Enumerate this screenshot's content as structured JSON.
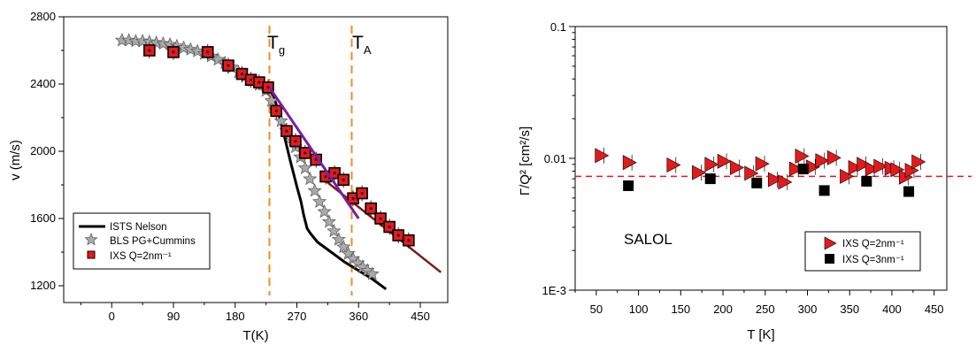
{
  "chart_data": [
    {
      "type": "scatter",
      "title": "",
      "xlabel": "T(K)",
      "ylabel": "v (m/s)",
      "xlim": [
        -70,
        490
      ],
      "ylim": [
        1100,
        2800
      ],
      "x_ticks": [
        "0",
        "90",
        "180",
        "270",
        "360",
        "450"
      ],
      "y_ticks": [
        "1200",
        "1600",
        "2000",
        "2400",
        "2800"
      ],
      "annotations": [
        {
          "text": "T",
          "sub": "g",
          "x": 230
        },
        {
          "text": "T",
          "sub": "A",
          "x": 350
        }
      ],
      "colors": {
        "nelson": "#000000",
        "bls": "#aaaaaa",
        "ixs": "#e31a1c",
        "fit_glass": "#7a1fa2",
        "fit_liquid": "#7a1a12",
        "tg_line": "#f08c1e"
      },
      "series": [
        {
          "name": "ISTS Nelson",
          "marker": "line",
          "x": [
            230,
            240,
            250,
            260,
            270,
            276,
            280,
            285,
            290,
            300,
            320,
            340,
            360,
            380,
            400
          ],
          "y": [
            2380,
            2280,
            2120,
            1950,
            1790,
            1700,
            1620,
            1540,
            1510,
            1460,
            1400,
            1340,
            1290,
            1240,
            1180
          ]
        },
        {
          "name": "BLS PG+Cummins",
          "marker": "star",
          "x": [
            15,
            25,
            35,
            45,
            55,
            65,
            75,
            85,
            95,
            105,
            115,
            125,
            135,
            145,
            155,
            165,
            175,
            185,
            195,
            205,
            215,
            225,
            233,
            240,
            247,
            254,
            261,
            268,
            275,
            282,
            289,
            296,
            303,
            310,
            317,
            324,
            331,
            338,
            345,
            352,
            359,
            366,
            373,
            380
          ],
          "y": [
            2660,
            2660,
            2655,
            2655,
            2650,
            2645,
            2640,
            2635,
            2625,
            2615,
            2605,
            2595,
            2580,
            2565,
            2545,
            2525,
            2500,
            2470,
            2445,
            2420,
            2395,
            2360,
            2300,
            2240,
            2180,
            2125,
            2075,
            2025,
            1965,
            1900,
            1835,
            1765,
            1700,
            1640,
            1580,
            1525,
            1475,
            1430,
            1390,
            1360,
            1335,
            1310,
            1290,
            1270
          ]
        },
        {
          "name": "IXS Q=2nm⁻¹",
          "marker": "square",
          "x": [
            55,
            90,
            140,
            170,
            190,
            203,
            215,
            228,
            240,
            255,
            268,
            282,
            298,
            312,
            325,
            338,
            352,
            365,
            378,
            392,
            405,
            418,
            433
          ],
          "y": [
            2600,
            2590,
            2590,
            2510,
            2460,
            2425,
            2410,
            2380,
            2240,
            2120,
            2060,
            1990,
            1950,
            1850,
            1870,
            1830,
            1720,
            1750,
            1660,
            1600,
            1550,
            1500,
            1470
          ]
        }
      ],
      "fit_lines": [
        {
          "x": [
            230,
            360
          ],
          "y": [
            2380,
            1600
          ]
        },
        {
          "x": [
            310,
            480
          ],
          "y": [
            1830,
            1280
          ]
        }
      ],
      "vlines": [
        230,
        350
      ]
    },
    {
      "type": "scatter",
      "title": "",
      "xlabel": "T [K]",
      "ylabel": "Γ/Q² [cm²/s]",
      "xscale": "log-y",
      "xlim": [
        25,
        465
      ],
      "ylim": [
        0.001,
        0.1
      ],
      "x_ticks": [
        "50",
        "100",
        "150",
        "200",
        "250",
        "300",
        "350",
        "400",
        "450"
      ],
      "y_ticks": [
        "1E-3",
        "0.01",
        "0.1"
      ],
      "text_annotation": "SALOL",
      "hline": 0.0073,
      "colors": {
        "q2": "#e31a1c",
        "q3": "#000000",
        "hline": "#e31a1c"
      },
      "series": [
        {
          "name": "IXS Q=2nm⁻¹",
          "marker": "triangle-right",
          "x": [
            55,
            88,
            140,
            170,
            185,
            200,
            215,
            232,
            245,
            260,
            272,
            285,
            292,
            305,
            316,
            330,
            345,
            355,
            365,
            375,
            385,
            398,
            405,
            415,
            422,
            430
          ],
          "y": [
            0.0105,
            0.0093,
            0.0089,
            0.0078,
            0.009,
            0.0095,
            0.0085,
            0.0077,
            0.0091,
            0.0069,
            0.0066,
            0.0083,
            0.0104,
            0.0086,
            0.0096,
            0.0101,
            0.0073,
            0.0085,
            0.009,
            0.0083,
            0.0087,
            0.0084,
            0.0082,
            0.0072,
            0.0081,
            0.0094
          ]
        },
        {
          "name": "IXS Q=3nm⁻¹",
          "marker": "square",
          "x": [
            88,
            185,
            240,
            295,
            320,
            370,
            420
          ],
          "y": [
            0.0062,
            0.007,
            0.0065,
            0.0083,
            0.0057,
            0.0067,
            0.0056
          ]
        }
      ]
    }
  ]
}
